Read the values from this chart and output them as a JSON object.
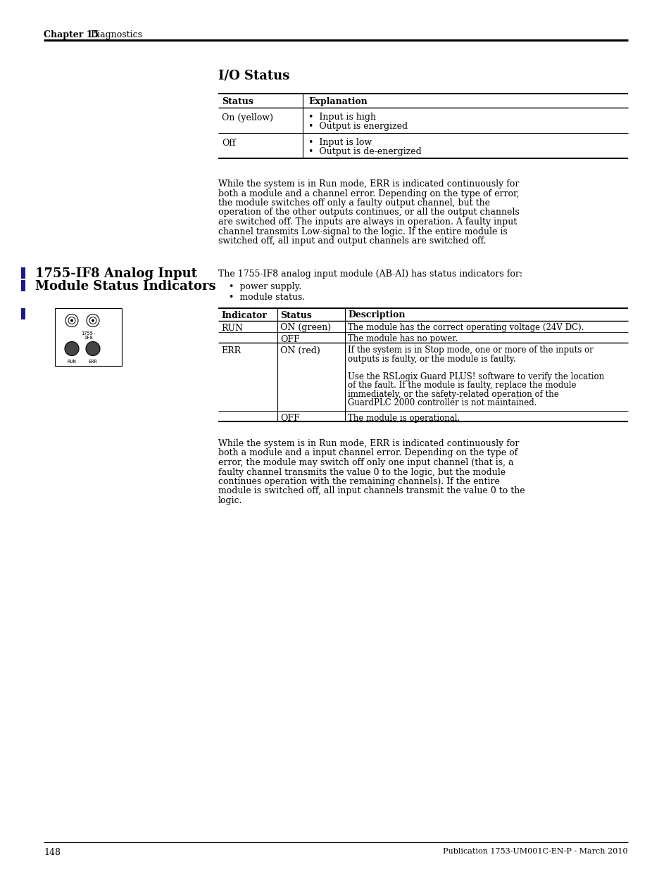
{
  "page_bg": "#ffffff",
  "chapter_label": "Chapter 15",
  "chapter_title": "Diagnostics",
  "page_number": "148",
  "publication": "Publication 1753-UM001C-EN-P - March 2010",
  "section1_title": "I/O Status",
  "para1_lines": [
    "While the system is in Run mode, ERR is indicated continuously for",
    "both a module and a channel error. Depending on the type of error,",
    "the module switches off only a faulty output channel, but the",
    "operation of the other outputs continues, or all the output channels",
    "are switched off. The inputs are always in operation. A faulty input",
    "channel transmits Low-signal to the logic. If the entire module is",
    "switched off, all input and output channels are switched off."
  ],
  "section2_title_line1": "1755-IF8 Analog Input",
  "section2_title_line2": "Module Status Indicators",
  "section2_intro": "The 1755-IF8 analog input module (AB-AI) has status indicators for:",
  "section2_bullet1": "•  power supply.",
  "section2_bullet2": "•  module status.",
  "para2_lines": [
    "While the system is in Run mode, ERR is indicated continuously for",
    "both a module and a input channel error. Depending on the type of",
    "error, the module may switch off only one input channel (that is, a",
    "faulty channel transmits the value 0 to the logic, but the module",
    "continues operation with the remaining channels). If the entire",
    "module is switched off, all input channels transmit the value 0 to the",
    "logic."
  ],
  "left_bar_color": "#1a1a8c",
  "black": "#000000",
  "white": "#ffffff"
}
